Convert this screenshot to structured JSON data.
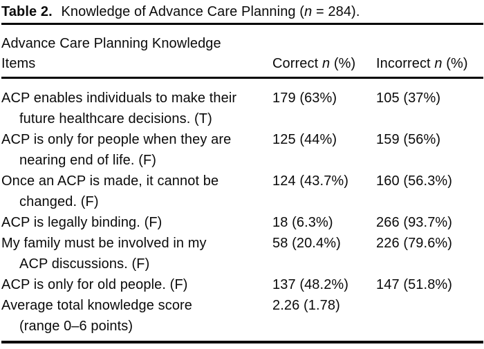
{
  "caption": {
    "segments": [
      {
        "text": "Table 2.",
        "bold": true
      },
      {
        "text": " Knowledge of Advance Care Planning ("
      },
      {
        "text": "n",
        "italic": true
      },
      {
        "text": " = 284)."
      }
    ]
  },
  "table": {
    "columns": [
      {
        "key": "items",
        "lines": [
          "Advance Care Planning Knowledge",
          "Items"
        ]
      },
      {
        "key": "correct",
        "segments": [
          {
            "text": "Correct "
          },
          {
            "text": "n",
            "italic": true
          },
          {
            "text": " (%)"
          }
        ]
      },
      {
        "key": "incorrect",
        "segments": [
          {
            "text": "Incorrect "
          },
          {
            "text": "n",
            "italic": true
          },
          {
            "text": " (%)"
          }
        ]
      }
    ],
    "rows": [
      {
        "item_lines": [
          "ACP enables individuals to make their",
          "future healthcare decisions. (T)"
        ],
        "correct": "179 (63%)",
        "incorrect": "105 (37%)"
      },
      {
        "item_lines": [
          "ACP is only for people when they are",
          "nearing end of life. (F)"
        ],
        "correct": "125 (44%)",
        "incorrect": "159 (56%)"
      },
      {
        "item_lines": [
          "Once an ACP is made, it cannot be",
          "changed. (F)"
        ],
        "correct": "124 (43.7%)",
        "incorrect": "160 (56.3%)"
      },
      {
        "item_lines": [
          "ACP is legally binding. (F)"
        ],
        "correct": "18 (6.3%)",
        "incorrect": "266 (93.7%)"
      },
      {
        "item_lines": [
          "My family must be involved in my",
          "ACP discussions. (F)"
        ],
        "correct": "58 (20.4%)",
        "incorrect": "226 (79.6%)"
      },
      {
        "item_lines": [
          "ACP is only for old people. (F)"
        ],
        "correct": "137 (48.2%)",
        "incorrect": "147 (51.8%)"
      },
      {
        "item_lines": [
          "Average total knowledge score",
          "(range 0–6 points)"
        ],
        "correct": "2.26 (1.78)",
        "incorrect": ""
      }
    ]
  },
  "colors": {
    "text": "#0a0a0a",
    "rule": "#000000",
    "background": "#ffffff"
  }
}
